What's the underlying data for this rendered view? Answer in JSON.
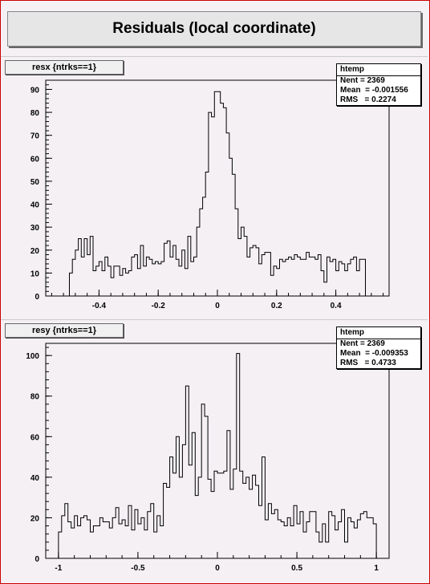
{
  "page": {
    "title": "Residuals (local coordinate)"
  },
  "pads": [
    {
      "title": "resx {ntrks==1}",
      "stats": {
        "name": "htemp",
        "entries": "Nent = 2369",
        "mean": "Mean  = -0.001556",
        "rms": "RMS   = 0.2274"
      }
    },
    {
      "title": "resy {ntrks==1}",
      "stats": {
        "name": "htemp",
        "entries": "Nent = 2369",
        "mean": "Mean  = -0.009353",
        "rms": "RMS   = 0.4733"
      }
    }
  ],
  "chart_data": [
    {
      "type": "bar",
      "style": "step-histogram",
      "title": "resx {ntrks==1}",
      "xlabel": "",
      "ylabel": "",
      "xlim": [
        -0.58,
        0.58
      ],
      "ylim": [
        0,
        94
      ],
      "x_ticks": [
        -0.4,
        -0.2,
        0,
        0.2,
        0.4
      ],
      "x_tick_labels": [
        "-0.4",
        "-0.2",
        "0",
        "0.2",
        "0.4"
      ],
      "y_ticks": [
        0,
        10,
        20,
        30,
        40,
        50,
        60,
        70,
        80,
        90
      ],
      "grid": false,
      "bin_edges_range": [
        -0.5,
        0.5
      ],
      "values": [
        10,
        16,
        20,
        25,
        17,
        25,
        18,
        26,
        11,
        13,
        15,
        11,
        17,
        13,
        8,
        13,
        13,
        9,
        12,
        10,
        11,
        17,
        18,
        12,
        22,
        13,
        17,
        16,
        14,
        15,
        14,
        15,
        23,
        24,
        17,
        22,
        16,
        13,
        20,
        12,
        26,
        15,
        17,
        30,
        38,
        43,
        54,
        80,
        78,
        89,
        89,
        84,
        82,
        71,
        60,
        53,
        38,
        25,
        30,
        26,
        17,
        21,
        22,
        21,
        14,
        18,
        19,
        19,
        9,
        13,
        12,
        16,
        15,
        16,
        17,
        16,
        18,
        17,
        16,
        16,
        19,
        17,
        17,
        16,
        18,
        11,
        6,
        17,
        15,
        16,
        11,
        15,
        14,
        11,
        14,
        16,
        17,
        11,
        16,
        16
      ]
    },
    {
      "type": "bar",
      "style": "step-histogram",
      "title": "resy {ntrks==1}",
      "xlabel": "",
      "ylabel": "",
      "xlim": [
        -1.08,
        1.08
      ],
      "ylim": [
        0,
        106
      ],
      "x_ticks": [
        -1,
        -0.5,
        0,
        0.5,
        1
      ],
      "x_tick_labels": [
        "-1",
        "-0.5",
        "0",
        "0.5",
        "1"
      ],
      "y_ticks": [
        0,
        20,
        40,
        60,
        80,
        100
      ],
      "grid": false,
      "bin_edges_range": [
        -1,
        1
      ],
      "values": [
        13,
        21,
        27,
        18,
        15,
        21,
        16,
        20,
        21,
        19,
        13,
        16,
        16,
        20,
        18,
        18,
        15,
        20,
        25,
        17,
        19,
        16,
        26,
        14,
        24,
        17,
        20,
        14,
        23,
        27,
        13,
        21,
        16,
        37,
        35,
        50,
        42,
        60,
        40,
        56,
        85,
        46,
        62,
        31,
        40,
        76,
        70,
        39,
        33,
        43,
        42,
        42,
        43,
        63,
        34,
        44,
        101,
        43,
        37,
        40,
        34,
        41,
        36,
        26,
        50,
        19,
        27,
        22,
        24,
        19,
        18,
        16,
        20,
        16,
        26,
        17,
        23,
        13,
        18,
        23,
        23,
        13,
        8,
        17,
        8,
        23,
        21,
        14,
        18,
        24,
        8,
        20,
        18,
        15,
        19,
        22,
        23,
        20,
        20,
        17
      ]
    }
  ]
}
